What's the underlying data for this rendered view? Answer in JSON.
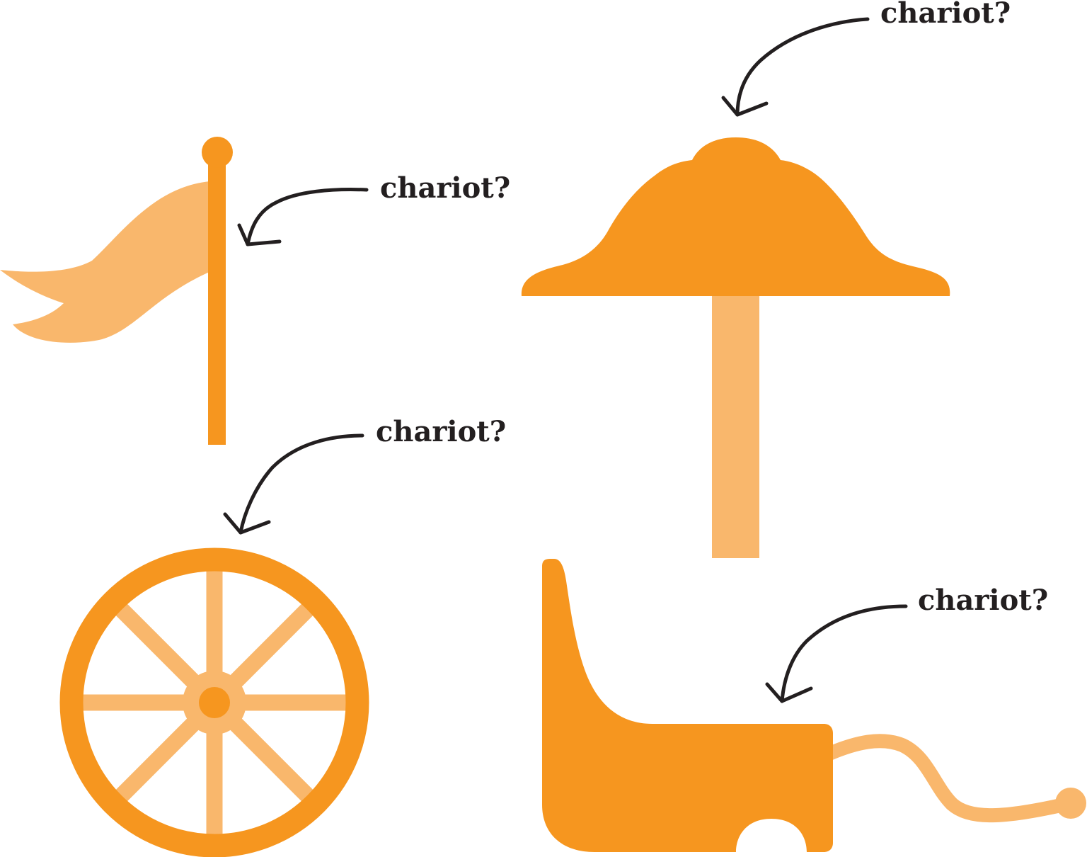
{
  "colors": {
    "dark_orange": "#f6961f",
    "light_orange": "#f9b76c",
    "ink": "#231f20",
    "background": "#ffffff"
  },
  "parts": [
    {
      "name": "flag",
      "label": "chariot?"
    },
    {
      "name": "umbrella",
      "label": "chariot?"
    },
    {
      "name": "wheel",
      "label": "chariot?"
    },
    {
      "name": "cart-body",
      "label": "chariot?"
    }
  ]
}
